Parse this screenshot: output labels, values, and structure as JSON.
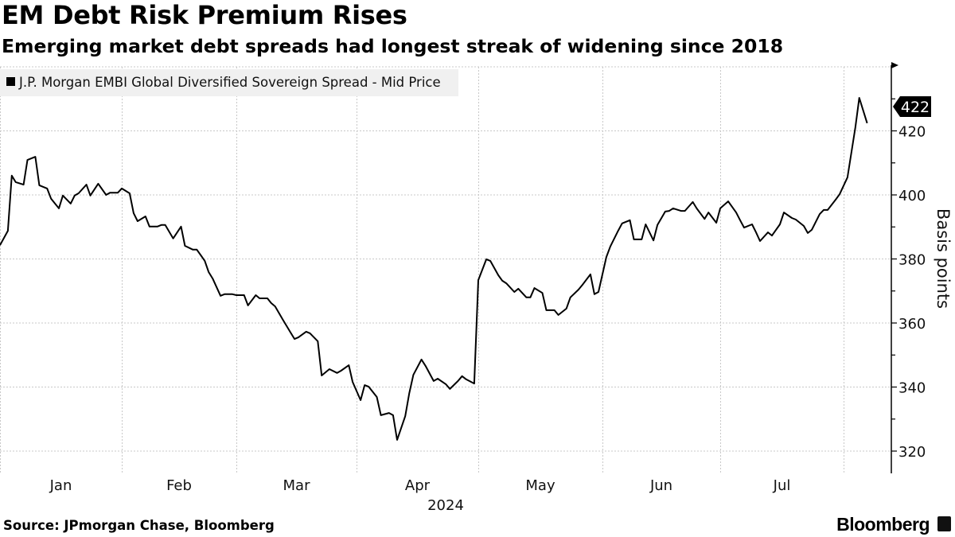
{
  "header": {
    "title": "EM Debt Risk Premium Rises",
    "subtitle": "Emerging market debt spreads had longest streak of widening since 2018"
  },
  "footer": {
    "source": "Source: JPmorgan Chase, Bloomberg",
    "brand": "Bloomberg"
  },
  "colors": {
    "line": "#000000",
    "grid": "#c8c8c8",
    "legend_bg": "#f0f0f0",
    "tag_bg": "#000000",
    "tag_text": "#ffffff"
  },
  "chart_data": {
    "type": "line",
    "title": "EM Debt Risk Premium Rises",
    "subtitle": "Emerging market debt spreads had longest streak of widening since 2018",
    "xlabel": "2024",
    "ylabel": "Basis points",
    "x_tick_labels": [
      "Jan",
      "Feb",
      "Mar",
      "Apr",
      "May",
      "Jun",
      "Jul"
    ],
    "y_ticks": [
      320,
      340,
      360,
      380,
      400,
      420
    ],
    "ylim": [
      315,
      440
    ],
    "xlim": [
      "2024-01-01",
      "2024-08-08"
    ],
    "grid": true,
    "y_axis_side": "right",
    "legend_placement": "top-left",
    "last_value_label": "422",
    "series": [
      {
        "name": "J.P. Morgan EMBI Global Diversified Sovereign Spread - Mid Price",
        "points": [
          [
            "2024-01-01",
            384.3
          ],
          [
            "2024-01-03",
            388.8
          ],
          [
            "2024-01-04",
            406.0
          ],
          [
            "2024-01-05",
            404.0
          ],
          [
            "2024-01-07",
            403.2
          ],
          [
            "2024-01-08",
            410.9
          ],
          [
            "2024-01-10",
            411.9
          ],
          [
            "2024-01-11",
            403.0
          ],
          [
            "2024-01-13",
            402.0
          ],
          [
            "2024-01-14",
            398.8
          ],
          [
            "2024-01-16",
            395.8
          ],
          [
            "2024-01-17",
            399.8
          ],
          [
            "2024-01-19",
            397.3
          ],
          [
            "2024-01-20",
            399.8
          ],
          [
            "2024-01-21",
            400.5
          ],
          [
            "2024-01-23",
            403.2
          ],
          [
            "2024-01-24",
            399.8
          ],
          [
            "2024-01-26",
            403.5
          ],
          [
            "2024-01-28",
            400.0
          ],
          [
            "2024-01-29",
            400.7
          ],
          [
            "2024-01-31",
            400.7
          ],
          [
            "2024-02-01",
            402.0
          ],
          [
            "2024-02-03",
            400.5
          ],
          [
            "2024-02-04",
            394.3
          ],
          [
            "2024-02-05",
            391.8
          ],
          [
            "2024-02-07",
            393.3
          ],
          [
            "2024-02-08",
            390.1
          ],
          [
            "2024-02-10",
            390.1
          ],
          [
            "2024-02-11",
            390.6
          ],
          [
            "2024-02-12",
            390.6
          ],
          [
            "2024-02-14",
            386.4
          ],
          [
            "2024-02-16",
            390.1
          ],
          [
            "2024-02-17",
            384.1
          ],
          [
            "2024-02-19",
            382.9
          ],
          [
            "2024-02-20",
            382.9
          ],
          [
            "2024-02-22",
            379.4
          ],
          [
            "2024-02-23",
            375.9
          ],
          [
            "2024-02-24",
            373.9
          ],
          [
            "2024-02-26",
            368.5
          ],
          [
            "2024-02-27",
            369.0
          ],
          [
            "2024-02-29",
            369.0
          ],
          [
            "2024-03-01",
            368.7
          ],
          [
            "2024-03-03",
            368.7
          ],
          [
            "2024-03-04",
            365.5
          ],
          [
            "2024-03-06",
            368.7
          ],
          [
            "2024-03-07",
            367.7
          ],
          [
            "2024-03-09",
            367.7
          ],
          [
            "2024-03-10",
            366.2
          ],
          [
            "2024-03-11",
            365.2
          ],
          [
            "2024-03-13",
            361.0
          ],
          [
            "2024-03-15",
            357.0
          ],
          [
            "2024-03-16",
            355.0
          ],
          [
            "2024-03-17",
            355.5
          ],
          [
            "2024-03-19",
            357.3
          ],
          [
            "2024-03-20",
            356.8
          ],
          [
            "2024-03-22",
            354.3
          ],
          [
            "2024-03-23",
            343.6
          ],
          [
            "2024-03-25",
            345.6
          ],
          [
            "2024-03-27",
            344.4
          ],
          [
            "2024-03-28",
            345.1
          ],
          [
            "2024-03-30",
            346.8
          ],
          [
            "2024-03-31",
            341.6
          ],
          [
            "2024-04-02",
            335.9
          ],
          [
            "2024-04-03",
            340.6
          ],
          [
            "2024-04-04",
            340.1
          ],
          [
            "2024-04-06",
            336.9
          ],
          [
            "2024-04-07",
            331.2
          ],
          [
            "2024-04-09",
            331.9
          ],
          [
            "2024-04-10",
            331.2
          ],
          [
            "2024-04-11",
            323.5
          ],
          [
            "2024-04-13",
            330.9
          ],
          [
            "2024-04-14",
            338.1
          ],
          [
            "2024-04-15",
            343.8
          ],
          [
            "2024-04-17",
            348.6
          ],
          [
            "2024-04-18",
            346.6
          ],
          [
            "2024-04-20",
            341.9
          ],
          [
            "2024-04-21",
            342.6
          ],
          [
            "2024-04-23",
            340.9
          ],
          [
            "2024-04-24",
            339.4
          ],
          [
            "2024-04-26",
            341.9
          ],
          [
            "2024-04-27",
            343.4
          ],
          [
            "2024-04-28",
            342.4
          ],
          [
            "2024-04-30",
            341.1
          ],
          [
            "2024-05-01",
            373.4
          ],
          [
            "2024-05-03",
            379.9
          ],
          [
            "2024-05-04",
            379.4
          ],
          [
            "2024-05-06",
            374.9
          ],
          [
            "2024-05-07",
            373.2
          ],
          [
            "2024-05-08",
            372.4
          ],
          [
            "2024-05-10",
            369.7
          ],
          [
            "2024-05-11",
            370.7
          ],
          [
            "2024-05-13",
            368.0
          ],
          [
            "2024-05-14",
            368.0
          ],
          [
            "2024-05-15",
            370.9
          ],
          [
            "2024-05-17",
            369.4
          ],
          [
            "2024-05-18",
            364.0
          ],
          [
            "2024-05-20",
            364.0
          ],
          [
            "2024-05-21",
            362.5
          ],
          [
            "2024-05-23",
            364.5
          ],
          [
            "2024-05-24",
            368.0
          ],
          [
            "2024-05-26",
            370.4
          ],
          [
            "2024-05-27",
            371.9
          ],
          [
            "2024-05-29",
            375.2
          ],
          [
            "2024-05-30",
            369.0
          ],
          [
            "2024-05-31",
            369.7
          ],
          [
            "2024-06-02",
            380.6
          ],
          [
            "2024-06-03",
            383.9
          ],
          [
            "2024-06-05",
            388.8
          ],
          [
            "2024-06-06",
            391.1
          ],
          [
            "2024-06-08",
            392.1
          ],
          [
            "2024-06-09",
            386.1
          ],
          [
            "2024-06-11",
            386.1
          ],
          [
            "2024-06-12",
            390.8
          ],
          [
            "2024-06-14",
            385.8
          ],
          [
            "2024-06-15",
            390.6
          ],
          [
            "2024-06-17",
            394.8
          ],
          [
            "2024-06-18",
            395.0
          ],
          [
            "2024-06-19",
            395.8
          ],
          [
            "2024-06-21",
            395.0
          ],
          [
            "2024-06-22",
            395.0
          ],
          [
            "2024-06-24",
            397.8
          ],
          [
            "2024-06-25",
            395.8
          ],
          [
            "2024-06-27",
            392.5
          ],
          [
            "2024-06-28",
            394.5
          ],
          [
            "2024-06-30",
            391.3
          ],
          [
            "2024-07-01",
            395.8
          ],
          [
            "2024-07-03",
            398.0
          ],
          [
            "2024-07-05",
            394.5
          ],
          [
            "2024-07-06",
            392.1
          ],
          [
            "2024-07-07",
            389.8
          ],
          [
            "2024-07-09",
            390.8
          ],
          [
            "2024-07-10",
            388.3
          ],
          [
            "2024-07-11",
            385.6
          ],
          [
            "2024-07-13",
            388.3
          ],
          [
            "2024-07-14",
            387.3
          ],
          [
            "2024-07-16",
            390.8
          ],
          [
            "2024-07-17",
            394.5
          ],
          [
            "2024-07-19",
            392.8
          ],
          [
            "2024-07-20",
            392.3
          ],
          [
            "2024-07-22",
            390.3
          ],
          [
            "2024-07-23",
            388.1
          ],
          [
            "2024-07-24",
            389.1
          ],
          [
            "2024-07-26",
            394.0
          ],
          [
            "2024-07-27",
            395.3
          ],
          [
            "2024-07-28",
            395.3
          ],
          [
            "2024-07-30",
            398.5
          ],
          [
            "2024-07-31",
            400.2
          ],
          [
            "2024-08-02",
            405.5
          ],
          [
            "2024-08-04",
            421.1
          ],
          [
            "2024-08-05",
            430.3
          ],
          [
            "2024-08-07",
            422.4
          ]
        ]
      }
    ]
  }
}
